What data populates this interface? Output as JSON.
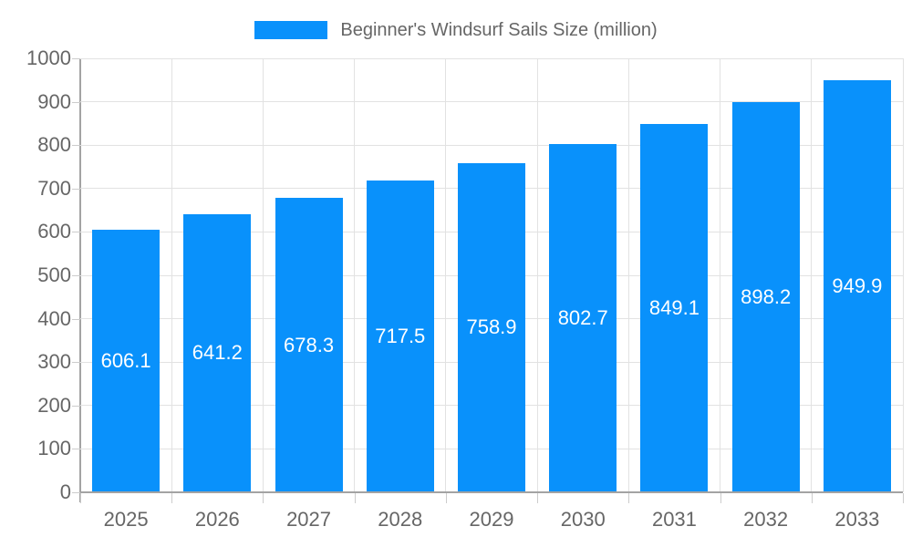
{
  "legend": {
    "label": "Beginner's Windsurf Sails Size (million)"
  },
  "chart_data": {
    "type": "bar",
    "title": "Beginner's Windsurf Sails Size (million)",
    "categories": [
      "2025",
      "2026",
      "2027",
      "2028",
      "2029",
      "2030",
      "2031",
      "2032",
      "2033"
    ],
    "values": [
      606.1,
      641.2,
      678.3,
      717.5,
      758.9,
      802.7,
      849.1,
      898.2,
      949.9
    ],
    "value_labels": [
      "606.1",
      "641.2",
      "678.3",
      "717.5",
      "758.9",
      "802.7",
      "849.1",
      "898.2",
      "949.9"
    ],
    "xlabel": "",
    "ylabel": "",
    "ylim": [
      0,
      1000
    ],
    "yticks": [
      0,
      100,
      200,
      300,
      400,
      500,
      600,
      700,
      800,
      900,
      1000
    ],
    "grid": "on",
    "legend_position": "top-center",
    "colors": {
      "bar": "#0991fb",
      "grid_line": "#e2e2e2",
      "axis_line": "#a3a3a3",
      "tick_line": "#cccccc",
      "axis_text": "#666666",
      "value_text": "#ffffff",
      "legend_text": "#666666"
    }
  }
}
